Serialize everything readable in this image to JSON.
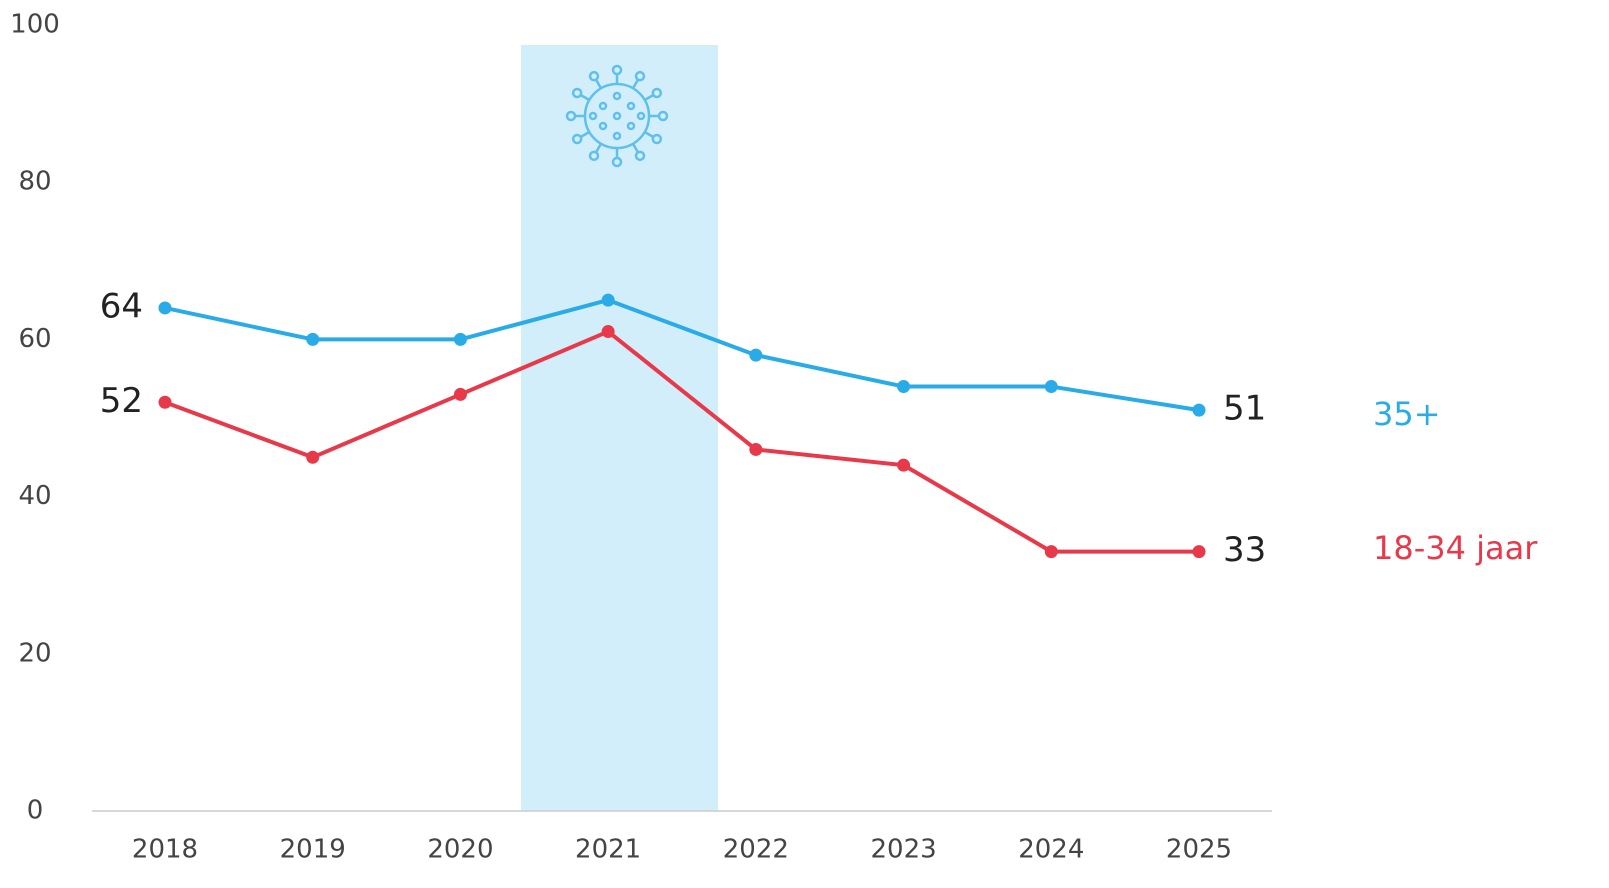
{
  "chart_data": {
    "type": "line",
    "categories": [
      "2018",
      "2019",
      "2020",
      "2021",
      "2022",
      "2023",
      "2024",
      "2025"
    ],
    "series": [
      {
        "name": "35+",
        "color": "#29abe8",
        "values": [
          64,
          60,
          60,
          65,
          58,
          54,
          54,
          51
        ]
      },
      {
        "name": "18-34 jaar",
        "color": "#e8394a",
        "values": [
          52,
          45,
          53,
          61,
          46,
          44,
          33,
          33
        ]
      }
    ],
    "ylim": [
      0,
      100
    ],
    "yticks": [
      0,
      20,
      40,
      60,
      80,
      100
    ],
    "grid": false
  }
}
